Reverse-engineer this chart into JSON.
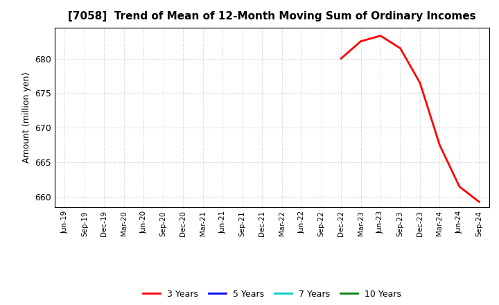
{
  "title": "[7058]  Trend of Mean of 12-Month Moving Sum of Ordinary Incomes",
  "ylabel": "Amount (million yen)",
  "ylim": [
    658.5,
    684.5
  ],
  "yticks": [
    660,
    665,
    670,
    675,
    680
  ],
  "background_color": "#ffffff",
  "plot_background_color": "#ffffff",
  "line_3y_color": "#ff0000",
  "line_5y_color": "#0000ff",
  "line_7y_color": "#00cccc",
  "line_10y_color": "#008000",
  "x_labels": [
    "Jun-19",
    "Sep-19",
    "Dec-19",
    "Mar-20",
    "Jun-20",
    "Sep-20",
    "Dec-20",
    "Mar-21",
    "Jun-21",
    "Sep-21",
    "Dec-21",
    "Mar-22",
    "Jun-22",
    "Sep-22",
    "Dec-22",
    "Mar-23",
    "Jun-23",
    "Sep-23",
    "Dec-23",
    "Mar-24",
    "Jun-24",
    "Sep-24"
  ],
  "data_3y": {
    "x_indices": [
      14,
      15,
      16,
      17,
      18,
      19,
      20,
      21
    ],
    "y_values": [
      680.0,
      682.5,
      683.3,
      681.5,
      676.5,
      667.5,
      661.5,
      659.3
    ]
  },
  "legend_labels": [
    "3 Years",
    "5 Years",
    "7 Years",
    "10 Years"
  ],
  "legend_colors": [
    "#ff0000",
    "#0000ff",
    "#00cccc",
    "#008000"
  ]
}
